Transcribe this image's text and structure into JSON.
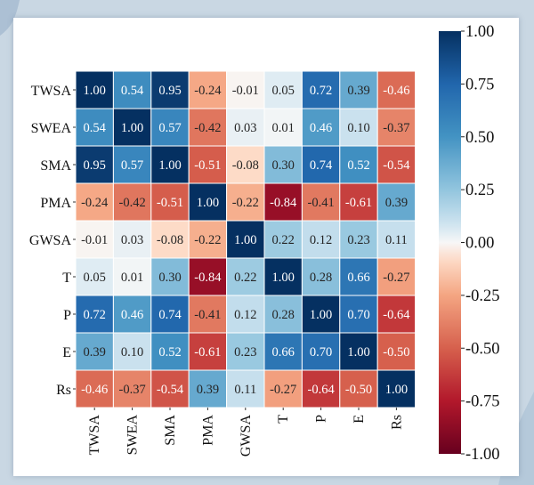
{
  "chart_data": {
    "type": "heatmap",
    "title": "",
    "rows": [
      "TWSA",
      "SWEA",
      "SMA",
      "PMA",
      "GWSA",
      "T",
      "P",
      "E",
      "Rs"
    ],
    "columns": [
      "TWSA",
      "SWEA",
      "SMA",
      "PMA",
      "GWSA",
      "T",
      "P",
      "E",
      "Rs"
    ],
    "values": [
      [
        1.0,
        0.54,
        0.95,
        -0.24,
        -0.01,
        0.05,
        0.72,
        0.39,
        -0.46
      ],
      [
        0.54,
        1.0,
        0.57,
        -0.42,
        0.03,
        0.01,
        0.46,
        0.1,
        -0.37
      ],
      [
        0.95,
        0.57,
        1.0,
        -0.51,
        -0.08,
        0.3,
        0.74,
        0.52,
        -0.54
      ],
      [
        -0.24,
        -0.42,
        -0.51,
        1.0,
        -0.22,
        -0.84,
        -0.41,
        -0.61,
        0.39
      ],
      [
        -0.01,
        0.03,
        -0.08,
        -0.22,
        1.0,
        0.22,
        0.12,
        0.23,
        0.11
      ],
      [
        0.05,
        0.01,
        0.3,
        -0.84,
        0.22,
        1.0,
        0.28,
        0.66,
        -0.27
      ],
      [
        0.72,
        0.46,
        0.74,
        -0.41,
        0.12,
        0.28,
        1.0,
        0.7,
        -0.64
      ],
      [
        0.39,
        0.1,
        0.52,
        -0.61,
        0.23,
        0.66,
        0.7,
        1.0,
        -0.5
      ],
      [
        -0.46,
        -0.37,
        -0.54,
        0.39,
        0.11,
        -0.27,
        -0.64,
        -0.5,
        1.0
      ]
    ],
    "vmin": -1.0,
    "vmax": 1.0,
    "colormap": "RdBu",
    "colorbar_ticks": [
      "1.00",
      "0.75",
      "0.50",
      "0.25",
      "0.00",
      "-0.25",
      "-0.50",
      "-0.75",
      "-1.00"
    ],
    "grid": true,
    "legend": "right colorbar"
  },
  "colors": {
    "page_background": "#c9d7e3",
    "card": "#ffffff",
    "cell_border": "#ffffff"
  }
}
